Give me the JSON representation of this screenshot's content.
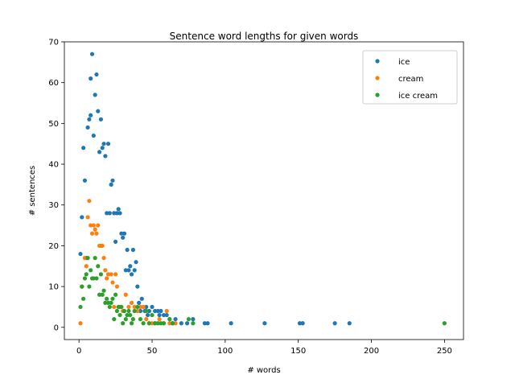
{
  "chart_data": {
    "type": "scatter",
    "title": "Sentence word lengths for given words",
    "xlabel": "# words",
    "ylabel": "# sentences",
    "xlim": [
      -10,
      263
    ],
    "ylim": [
      -3,
      70
    ],
    "xticks": [
      0,
      50,
      100,
      150,
      200,
      250
    ],
    "yticks": [
      0,
      10,
      20,
      30,
      40,
      50,
      60,
      70
    ],
    "grid": false,
    "legend": "top-right",
    "series": [
      {
        "name": "ice",
        "color": "#1f77b4",
        "points": [
          [
            1,
            18
          ],
          [
            2,
            27
          ],
          [
            3,
            44
          ],
          [
            4,
            36
          ],
          [
            5,
            17
          ],
          [
            6,
            49
          ],
          [
            7,
            51
          ],
          [
            8,
            52
          ],
          [
            8,
            61
          ],
          [
            9,
            67
          ],
          [
            10,
            47
          ],
          [
            11,
            57
          ],
          [
            12,
            62
          ],
          [
            13,
            53
          ],
          [
            14,
            43
          ],
          [
            15,
            51
          ],
          [
            16,
            44
          ],
          [
            17,
            45
          ],
          [
            18,
            42
          ],
          [
            19,
            28
          ],
          [
            20,
            45
          ],
          [
            21,
            28
          ],
          [
            22,
            35
          ],
          [
            23,
            36
          ],
          [
            24,
            28
          ],
          [
            25,
            21
          ],
          [
            26,
            28
          ],
          [
            27,
            29
          ],
          [
            28,
            28
          ],
          [
            29,
            23
          ],
          [
            30,
            22
          ],
          [
            31,
            23
          ],
          [
            32,
            14
          ],
          [
            33,
            19
          ],
          [
            34,
            14
          ],
          [
            35,
            15
          ],
          [
            36,
            13
          ],
          [
            37,
            19
          ],
          [
            38,
            14
          ],
          [
            39,
            16
          ],
          [
            40,
            10
          ],
          [
            41,
            6
          ],
          [
            42,
            4
          ],
          [
            43,
            7
          ],
          [
            44,
            5
          ],
          [
            45,
            4
          ],
          [
            46,
            5
          ],
          [
            47,
            3
          ],
          [
            48,
            4
          ],
          [
            50,
            5
          ],
          [
            52,
            4
          ],
          [
            54,
            4
          ],
          [
            55,
            3
          ],
          [
            56,
            4
          ],
          [
            58,
            3
          ],
          [
            60,
            3
          ],
          [
            62,
            2
          ],
          [
            64,
            1
          ],
          [
            66,
            2
          ],
          [
            70,
            1
          ],
          [
            74,
            1
          ],
          [
            78,
            2
          ],
          [
            86,
            1
          ],
          [
            88,
            1
          ],
          [
            104,
            1
          ],
          [
            127,
            1
          ],
          [
            151,
            1
          ],
          [
            153,
            1
          ],
          [
            175,
            1
          ],
          [
            185,
            1
          ]
        ]
      },
      {
        "name": "cream",
        "color": "#ff7f0e",
        "points": [
          [
            1,
            1
          ],
          [
            2,
            10
          ],
          [
            4,
            17
          ],
          [
            5,
            15
          ],
          [
            6,
            27
          ],
          [
            7,
            31
          ],
          [
            8,
            25
          ],
          [
            9,
            23
          ],
          [
            10,
            25
          ],
          [
            11,
            24
          ],
          [
            12,
            23
          ],
          [
            13,
            25
          ],
          [
            14,
            20
          ],
          [
            15,
            20
          ],
          [
            16,
            20
          ],
          [
            17,
            17
          ],
          [
            18,
            14
          ],
          [
            19,
            12
          ],
          [
            20,
            13
          ],
          [
            22,
            13
          ],
          [
            23,
            11
          ],
          [
            24,
            5
          ],
          [
            25,
            13
          ],
          [
            26,
            10
          ],
          [
            28,
            5
          ],
          [
            30,
            4
          ],
          [
            32,
            8
          ],
          [
            34,
            5
          ],
          [
            36,
            6
          ],
          [
            38,
            5
          ],
          [
            40,
            4
          ],
          [
            42,
            5
          ],
          [
            44,
            5
          ],
          [
            46,
            2
          ],
          [
            48,
            1
          ],
          [
            50,
            1
          ],
          [
            52,
            1
          ],
          [
            55,
            2
          ],
          [
            58,
            1
          ],
          [
            60,
            4
          ],
          [
            62,
            1
          ],
          [
            64,
            1
          ],
          [
            66,
            1
          ]
        ]
      },
      {
        "name": "ice cream",
        "color": "#2ca02c",
        "points": [
          [
            1,
            5
          ],
          [
            2,
            10
          ],
          [
            3,
            7
          ],
          [
            4,
            12
          ],
          [
            5,
            13
          ],
          [
            6,
            17
          ],
          [
            7,
            10
          ],
          [
            8,
            14
          ],
          [
            9,
            12
          ],
          [
            10,
            12
          ],
          [
            11,
            17
          ],
          [
            12,
            12
          ],
          [
            13,
            15
          ],
          [
            14,
            8
          ],
          [
            15,
            13
          ],
          [
            16,
            8
          ],
          [
            17,
            9
          ],
          [
            18,
            6
          ],
          [
            19,
            7
          ],
          [
            20,
            6
          ],
          [
            21,
            5
          ],
          [
            22,
            6
          ],
          [
            23,
            7
          ],
          [
            24,
            2
          ],
          [
            25,
            8
          ],
          [
            26,
            4
          ],
          [
            27,
            5
          ],
          [
            28,
            3
          ],
          [
            29,
            5
          ],
          [
            30,
            1
          ],
          [
            31,
            4
          ],
          [
            32,
            2
          ],
          [
            33,
            3
          ],
          [
            34,
            4
          ],
          [
            35,
            3
          ],
          [
            36,
            1
          ],
          [
            37,
            2
          ],
          [
            38,
            4
          ],
          [
            40,
            5
          ],
          [
            42,
            2
          ],
          [
            44,
            1
          ],
          [
            46,
            4
          ],
          [
            48,
            1
          ],
          [
            50,
            3
          ],
          [
            52,
            1
          ],
          [
            54,
            1
          ],
          [
            56,
            1
          ],
          [
            58,
            1
          ],
          [
            62,
            2
          ],
          [
            64,
            1
          ],
          [
            75,
            2
          ],
          [
            78,
            1
          ],
          [
            250,
            1
          ]
        ]
      }
    ]
  }
}
